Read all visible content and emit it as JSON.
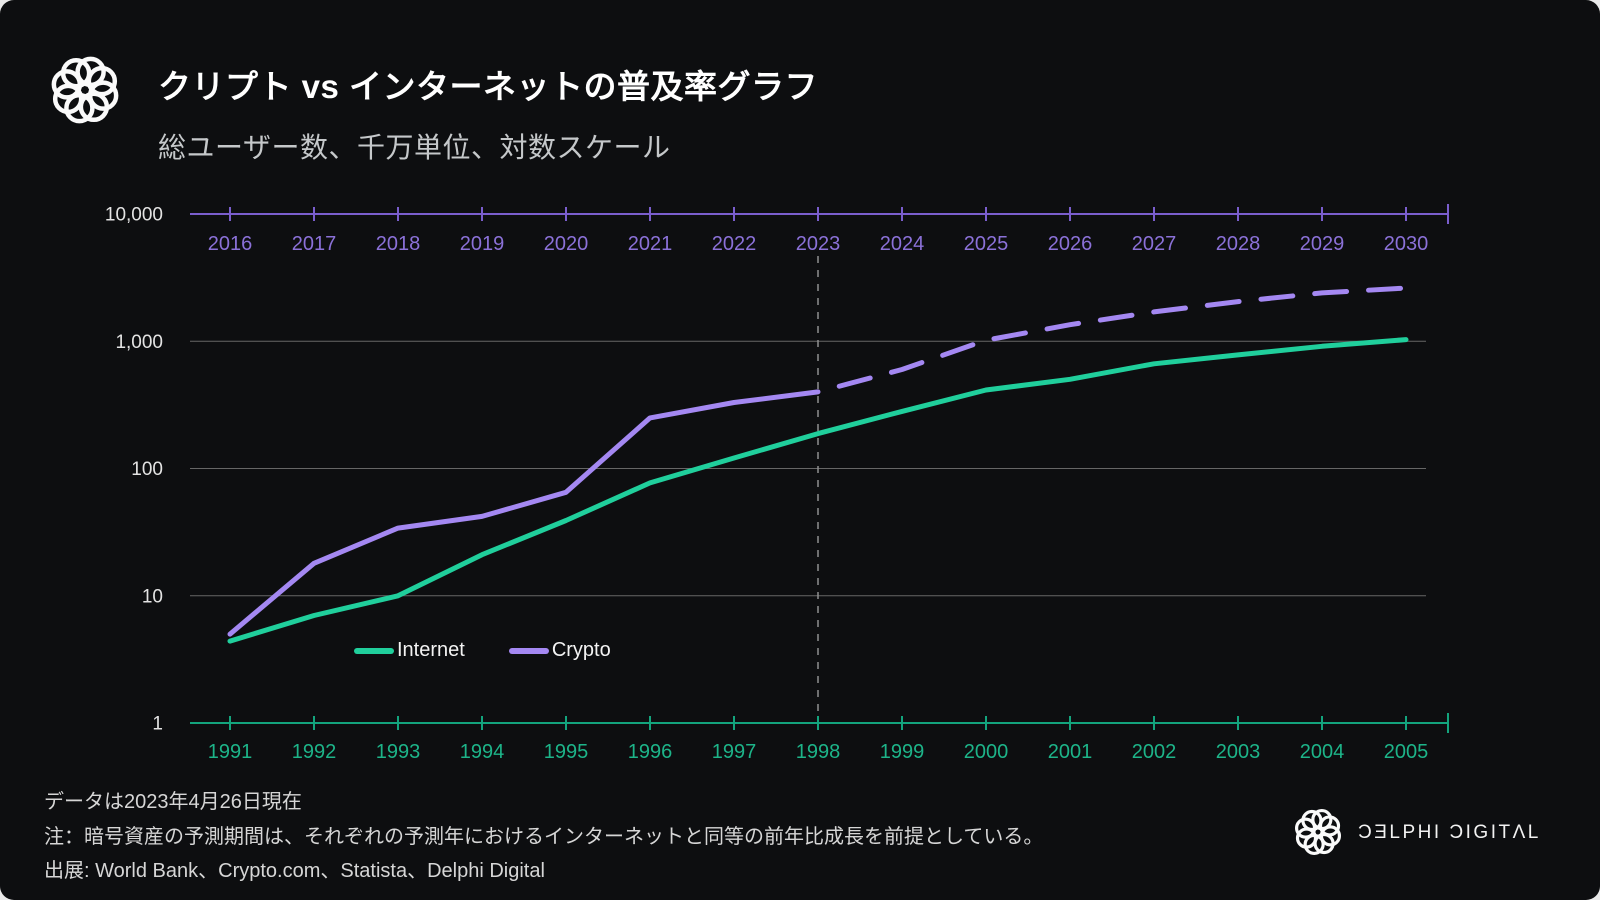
{
  "header": {
    "title": "クリプト vs インターネットの普及率グラフ",
    "subtitle": "総ユーザー数、千万単位、対数スケール"
  },
  "legend": {
    "internet": "Internet",
    "crypto": "Crypto"
  },
  "footer": {
    "line1": "データは2023年4月26日現在",
    "line2": "注：暗号資産の予測期間は、それぞれの予測年におけるインターネットと同等の前年比成長を前提としている。",
    "line3": "出展: World Bank、Crypto.com、Statista、Delphi Digital",
    "brand_wordmark": "ƆƎLPHI ƆIGITΛL"
  },
  "colors": {
    "background": "#0d0e10",
    "internet_line": "#20cf9c",
    "crypto_line": "#a488f2",
    "top_axis_line": "#7a5ecd",
    "top_axis_labels": "#8b71d8",
    "bottom_axis_line": "#13a47d",
    "bottom_axis_labels": "#1db489",
    "gridline": "#666666",
    "divider": "#8f8f8f",
    "y_labels": "#e3e3e3"
  },
  "chart_data": {
    "type": "line",
    "title": "クリプト vs インターネットの普及率グラフ",
    "subtitle": "総ユーザー数、千万単位、対数スケール",
    "y_scale": "log",
    "ylim": [
      1,
      10000
    ],
    "grid": "horizontal-only",
    "legend_position": "inside-bottom-left",
    "y_ticks": [
      {
        "label": "10,000",
        "value": 10000
      },
      {
        "label": "1,000",
        "value": 1000
      },
      {
        "label": "100",
        "value": 100
      },
      {
        "label": "10",
        "value": 10
      },
      {
        "label": "1",
        "value": 1
      }
    ],
    "gridline_values": [
      1000,
      100,
      10
    ],
    "top_axis": {
      "years": [
        2016,
        2017,
        2018,
        2019,
        2020,
        2021,
        2022,
        2023,
        2024,
        2025,
        2026,
        2027,
        2028,
        2029,
        2030
      ]
    },
    "bottom_axis": {
      "years": [
        1991,
        1992,
        1993,
        1994,
        1995,
        1996,
        1997,
        1998,
        1999,
        2000,
        2001,
        2002,
        2003,
        2004,
        2005
      ]
    },
    "series": [
      {
        "name": "Internet",
        "axis": "bottom",
        "style": "solid",
        "years": [
          1991,
          1992,
          1993,
          1994,
          1995,
          1996,
          1997,
          1998,
          1999,
          2000,
          2001,
          2002,
          2003,
          2004,
          2005
        ],
        "values": [
          4.4,
          7,
          10,
          21,
          39,
          77,
          121,
          188,
          281,
          414,
          502,
          665,
          781,
          913,
          1030
        ]
      },
      {
        "name": "Crypto",
        "axis": "top",
        "style": "solid-then-dashed-forecast",
        "solid_through_year": 2023,
        "years": [
          2016,
          2017,
          2018,
          2019,
          2020,
          2021,
          2022,
          2023,
          2024,
          2025,
          2026,
          2027,
          2028,
          2029,
          2030
        ],
        "values": [
          5,
          18,
          34,
          42,
          65,
          250,
          330,
          400,
          600,
          1020,
          1350,
          1700,
          2050,
          2400,
          2620
        ]
      }
    ],
    "forecast_divider": {
      "top_axis_year": 2023,
      "bottom_axis_year": 1998,
      "style": "vertical-dashed"
    }
  }
}
